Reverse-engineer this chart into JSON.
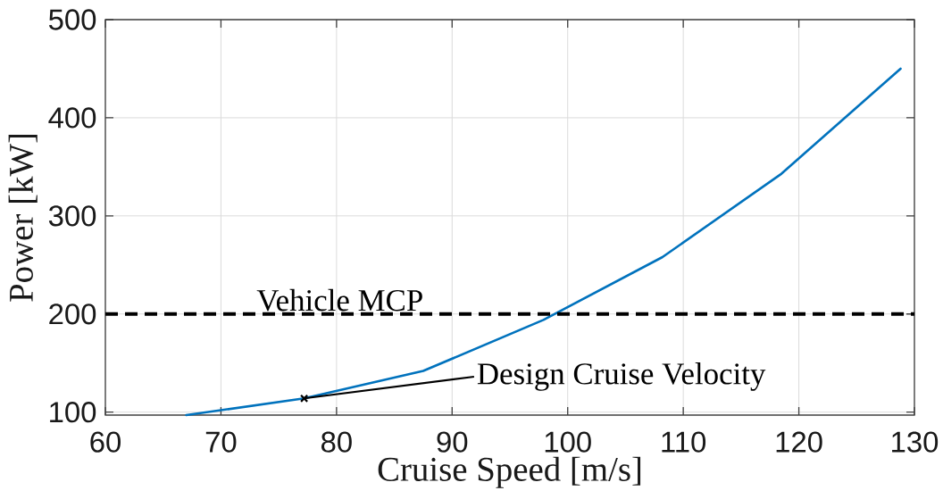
{
  "chart_data": {
    "type": "line",
    "xlabel": "Cruise Speed [m/s]",
    "ylabel": "Power [kW]",
    "x": [
      67,
      77.2,
      87.5,
      97.9,
      108.2,
      118.5,
      128.8
    ],
    "series": [
      {
        "color": "#0072bd",
        "values": [
          97,
          114,
          142,
          194,
          258,
          343,
          450
        ]
      }
    ],
    "xlim": [
      60,
      130
    ],
    "ylim": [
      97,
      500
    ],
    "xticks": [
      60,
      70,
      80,
      90,
      100,
      110,
      120,
      130
    ],
    "yticks": [
      100,
      200,
      300,
      400,
      500
    ],
    "grid": true,
    "ref_lines": [
      {
        "axis": "y",
        "value": 200,
        "label": "Vehicle MCP",
        "color": "#000000",
        "line_style": "dashed"
      }
    ],
    "annotations": [
      {
        "text": "Design Cruise Velocity",
        "x": 77.2,
        "y": 114
      }
    ]
  }
}
